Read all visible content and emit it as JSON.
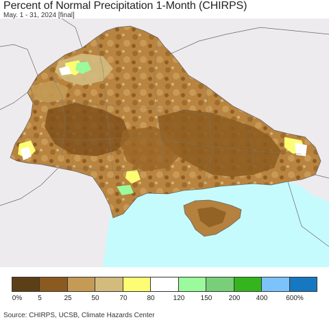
{
  "header": {
    "title": "Percent of Normal Precipitation 1-Month (CHIRPS)",
    "subtitle": "May. 1 - 31, 2024 [final]"
  },
  "map": {
    "background_color": "#eeebef",
    "sea_color": "#c6fbfd",
    "dominant_colors": [
      "#8b5a1f",
      "#b5813e",
      "#c49a55",
      "#d3bb7e",
      "#fdfd73"
    ]
  },
  "legend": {
    "colors": [
      "#5c3f16",
      "#8b5a1f",
      "#c49a55",
      "#d3bb7e",
      "#fdfd73",
      "#ffffff",
      "#9bfa9b",
      "#78cf78",
      "#35b51d",
      "#7cc3fb",
      "#1778c2"
    ],
    "labels": [
      "0%",
      "5",
      "25",
      "50",
      "70",
      "80",
      "120",
      "150",
      "200",
      "400",
      "600%"
    ]
  },
  "footer": {
    "source": "Source: CHIRPS, UCSB, Climate Hazards Center"
  }
}
